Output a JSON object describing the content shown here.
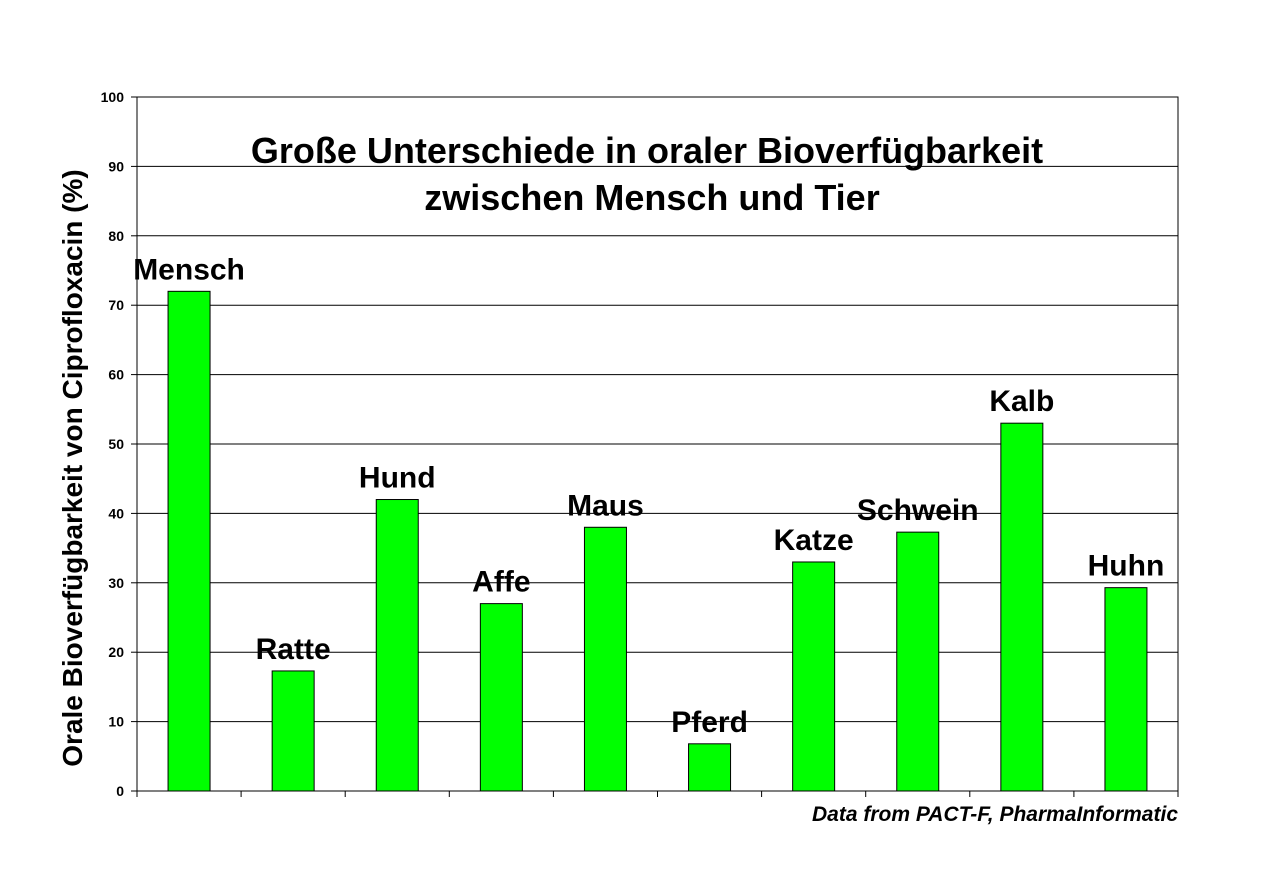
{
  "chart_data": {
    "type": "bar",
    "title_lines": [
      "Große Unterschiede in oraler Bioverfügbarkeit",
      "zwischen Mensch und Tier"
    ],
    "xlabel": "",
    "ylabel": "Orale Bioverfügbarkeit von Ciprofloxacin (%)",
    "ylim": [
      0,
      100
    ],
    "yticks": [
      "0",
      "10",
      "20",
      "30",
      "40",
      "50",
      "60",
      "70",
      "80",
      "90",
      "100"
    ],
    "categories": [
      "Mensch",
      "Ratte",
      "Hund",
      "Affe",
      "Maus",
      "Pferd",
      "Katze",
      "Schwein",
      "Kalb",
      "Huhn"
    ],
    "values": [
      72,
      17.3,
      42,
      27,
      38,
      6.8,
      33,
      37.3,
      53,
      29.3
    ],
    "bar_color": "#00ff00",
    "grid": true,
    "legend": "none",
    "source_note": "Data from PACT-F, PharmaInformatic"
  }
}
